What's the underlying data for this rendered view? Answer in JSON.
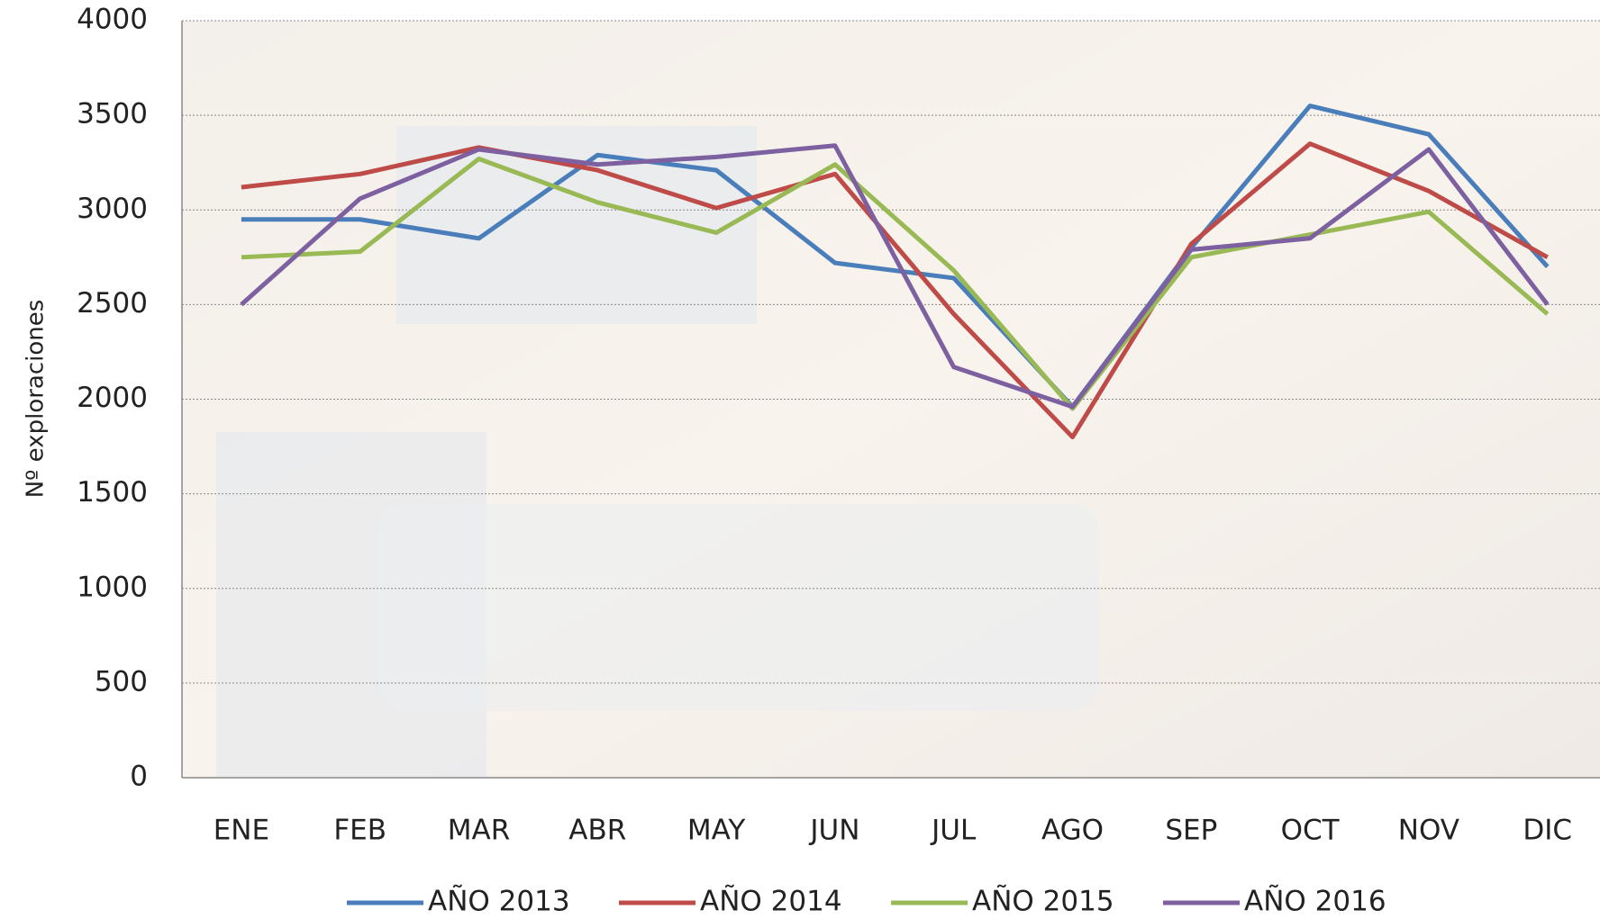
{
  "chart_data": {
    "type": "line",
    "y_label": "Nº exploraciones",
    "categories": [
      "ENE",
      "FEB",
      "MAR",
      "ABR",
      "MAY",
      "JUN",
      "JUL",
      "AGO",
      "SEP",
      "OCT",
      "NOV",
      "DIC"
    ],
    "series": [
      {
        "name": "AÑO 2013",
        "color": "#4a7ebb",
        "values": [
          2950,
          2950,
          2850,
          3290,
          3210,
          2720,
          2640,
          1960,
          2800,
          3550,
          3400,
          2700
        ]
      },
      {
        "name": "AÑO 2014",
        "color": "#be4b48",
        "values": [
          3120,
          3190,
          3330,
          3210,
          3010,
          3190,
          2450,
          1800,
          2820,
          3350,
          3100,
          2750
        ]
      },
      {
        "name": "AÑO 2015",
        "color": "#98b954",
        "values": [
          2750,
          2780,
          3270,
          3040,
          2880,
          3240,
          2680,
          1950,
          2750,
          2870,
          2990,
          2450
        ]
      },
      {
        "name": "AÑO 2016",
        "color": "#7d60a0",
        "values": [
          2500,
          3060,
          3320,
          3240,
          3280,
          3340,
          2170,
          1960,
          2790,
          2850,
          3320,
          2500
        ]
      }
    ],
    "ylim": [
      0,
      4000
    ],
    "yticks": [
      0,
      500,
      1000,
      1500,
      2000,
      2500,
      3000,
      3500,
      4000
    ],
    "grid": true,
    "legend": "bottom"
  }
}
